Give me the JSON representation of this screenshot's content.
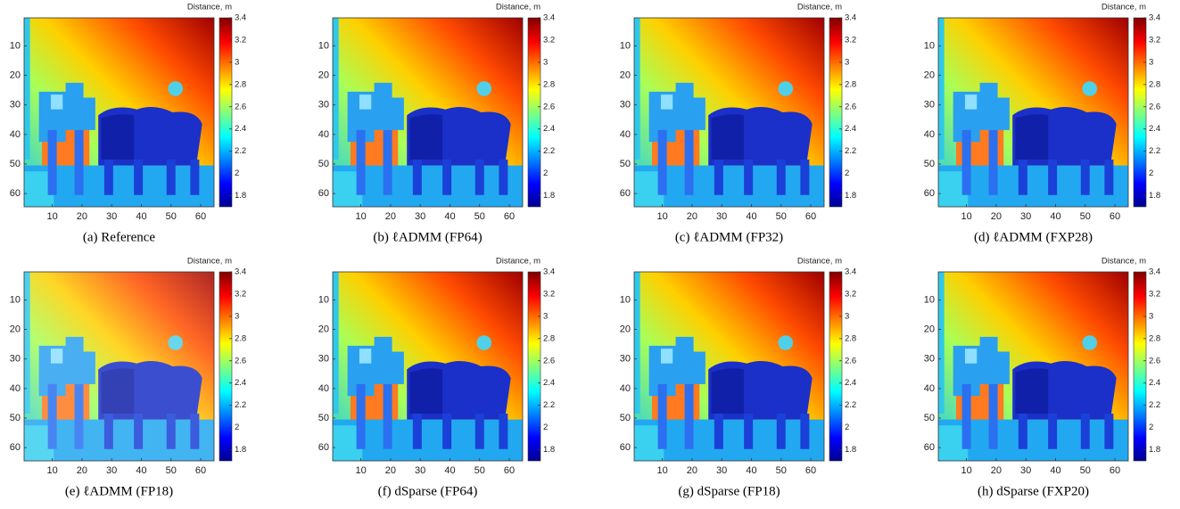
{
  "panels": [
    {
      "caption": "(a) Reference",
      "colorbar_label": "Distance, m",
      "xticks": [
        10,
        20,
        30,
        40,
        50,
        60
      ],
      "yticks": [
        10,
        20,
        30,
        40,
        50,
        60
      ],
      "xlim": [
        0.5,
        64.5
      ],
      "ylim": [
        0.5,
        64.5
      ],
      "clim": [
        1.7,
        3.4
      ],
      "cticks": [
        1.8,
        2,
        2.2,
        2.4,
        2.6,
        2.8,
        3,
        3.2,
        3.4
      ]
    },
    {
      "caption": "(b) ℓADMM (FP64)",
      "colorbar_label": "Distance, m",
      "xticks": [
        10,
        20,
        30,
        40,
        50,
        60
      ],
      "yticks": [
        10,
        20,
        30,
        40,
        50,
        60
      ],
      "xlim": [
        0.5,
        64.5
      ],
      "ylim": [
        0.5,
        64.5
      ],
      "clim": [
        1.7,
        3.4
      ],
      "cticks": [
        1.8,
        2,
        2.2,
        2.4,
        2.6,
        2.8,
        3,
        3.2,
        3.4
      ]
    },
    {
      "caption": "(c) ℓADMM (FP32)",
      "colorbar_label": "Distance, m",
      "xticks": [
        10,
        20,
        30,
        40,
        50,
        60
      ],
      "yticks": [
        10,
        20,
        30,
        40,
        50,
        60
      ],
      "xlim": [
        0.5,
        64.5
      ],
      "ylim": [
        0.5,
        64.5
      ],
      "clim": [
        1.7,
        3.4
      ],
      "cticks": [
        1.8,
        2,
        2.2,
        2.4,
        2.6,
        2.8,
        3,
        3.2,
        3.4
      ]
    },
    {
      "caption": "(d) ℓADMM (FXP28)",
      "colorbar_label": "Distance, m",
      "xticks": [
        10,
        20,
        30,
        40,
        50,
        60
      ],
      "yticks": [
        10,
        20,
        30,
        40,
        50,
        60
      ],
      "xlim": [
        0.5,
        64.5
      ],
      "ylim": [
        0.5,
        64.5
      ],
      "clim": [
        1.7,
        3.4
      ],
      "cticks": [
        1.8,
        2,
        2.2,
        2.4,
        2.6,
        2.8,
        3,
        3.2,
        3.4
      ]
    },
    {
      "caption": "(e) ℓADMM (FP18)",
      "colorbar_label": "Distance, m",
      "xticks": [
        10,
        20,
        30,
        40,
        50,
        60
      ],
      "yticks": [
        10,
        20,
        30,
        40,
        50,
        60
      ],
      "xlim": [
        0.5,
        64.5
      ],
      "ylim": [
        0.5,
        64.5
      ],
      "clim": [
        1.7,
        3.4
      ],
      "cticks": [
        1.8,
        2,
        2.2,
        2.4,
        2.6,
        2.8,
        3,
        3.2,
        3.4
      ]
    },
    {
      "caption": "(f) dSparse (FP64)",
      "colorbar_label": "Distance, m",
      "xticks": [
        10,
        20,
        30,
        40,
        50,
        60
      ],
      "yticks": [
        10,
        20,
        30,
        40,
        50,
        60
      ],
      "xlim": [
        0.5,
        64.5
      ],
      "ylim": [
        0.5,
        64.5
      ],
      "clim": [
        1.7,
        3.4
      ],
      "cticks": [
        1.8,
        2,
        2.2,
        2.4,
        2.6,
        2.8,
        3,
        3.2,
        3.4
      ]
    },
    {
      "caption": "(g) dSparse (FP18)",
      "colorbar_label": "Distance, m",
      "xticks": [
        10,
        20,
        30,
        40,
        50,
        60
      ],
      "yticks": [
        10,
        20,
        30,
        40,
        50,
        60
      ],
      "xlim": [
        0.5,
        64.5
      ],
      "ylim": [
        0.5,
        64.5
      ],
      "clim": [
        1.7,
        3.4
      ],
      "cticks": [
        1.8,
        2,
        2.2,
        2.4,
        2.6,
        2.8,
        3,
        3.2,
        3.4
      ]
    },
    {
      "caption": "(h) dSparse (FXP20)",
      "colorbar_label": "Distance, m",
      "xticks": [
        10,
        20,
        30,
        40,
        50,
        60
      ],
      "yticks": [
        10,
        20,
        30,
        40,
        50,
        60
      ],
      "xlim": [
        0.5,
        64.5
      ],
      "ylim": [
        0.5,
        64.5
      ],
      "clim": [
        1.7,
        3.4
      ],
      "cticks": [
        1.8,
        2,
        2.2,
        2.4,
        2.6,
        2.8,
        3,
        3.2,
        3.4
      ]
    }
  ]
}
